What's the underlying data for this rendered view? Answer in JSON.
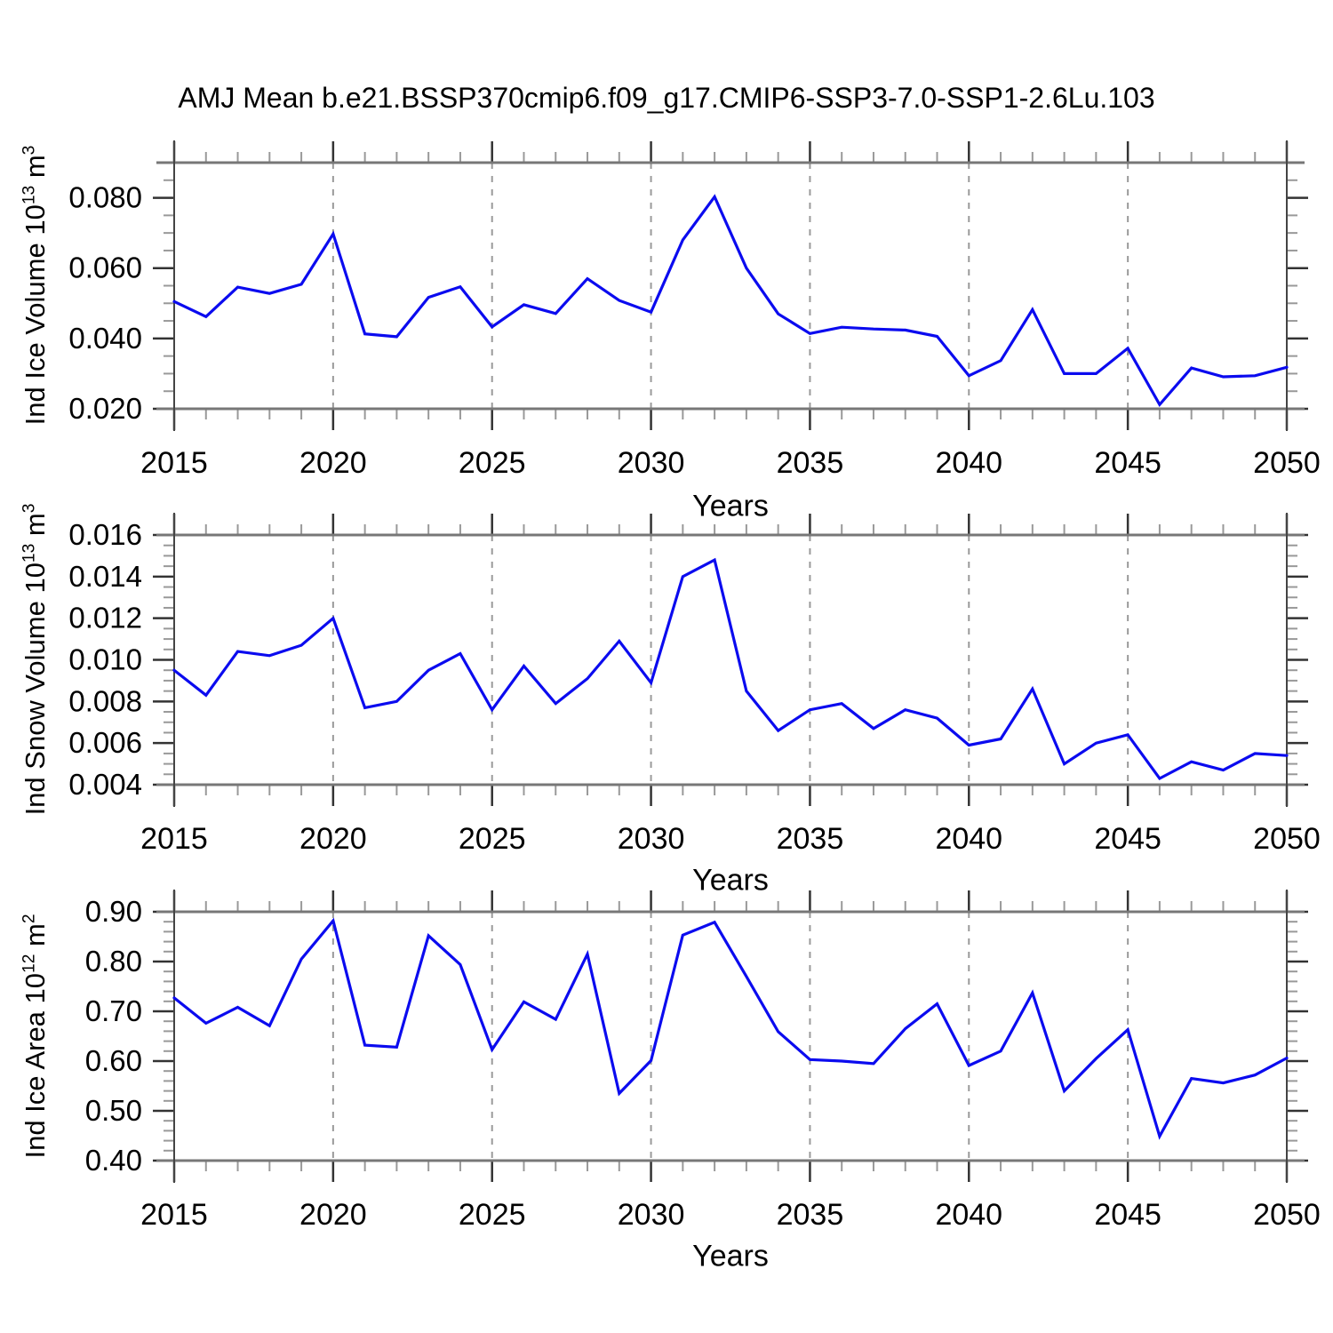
{
  "title": "AMJ Mean b.e21.BSSP370cmip6.f09_g17.CMIP6-SSP3-7.0-SSP1-2.6Lu.103",
  "accent_color": "#0b0bef",
  "chart_data": [
    {
      "type": "line",
      "xlabel": "Years",
      "ylabel": {
        "main": "Ind Ice Volume 10",
        "exp": "13",
        "unit": " m",
        "unit_exp": "3"
      },
      "x": [
        2015,
        2016,
        2017,
        2018,
        2019,
        2020,
        2021,
        2022,
        2023,
        2024,
        2025,
        2026,
        2027,
        2028,
        2029,
        2030,
        2031,
        2032,
        2033,
        2034,
        2035,
        2036,
        2037,
        2038,
        2039,
        2040,
        2041,
        2042,
        2043,
        2044,
        2045,
        2046,
        2047,
        2048,
        2049,
        2050
      ],
      "values": [
        0.0505,
        0.0462,
        0.0546,
        0.0528,
        0.0554,
        0.0697,
        0.0413,
        0.0405,
        0.0517,
        0.0547,
        0.0433,
        0.0496,
        0.0471,
        0.057,
        0.0508,
        0.0475,
        0.068,
        0.0803,
        0.06,
        0.047,
        0.0414,
        0.0432,
        0.0427,
        0.0424,
        0.0406,
        0.0294,
        0.0337,
        0.0482,
        0.03,
        0.03,
        0.0372,
        0.0212,
        0.0316,
        0.0291,
        0.0294,
        0.0318
      ],
      "xlim": [
        2015,
        2050
      ],
      "ylim": [
        0.02,
        0.09
      ],
      "yticks": [
        {
          "v": 0.02,
          "label": "0.020"
        },
        {
          "v": 0.04,
          "label": "0.040"
        },
        {
          "v": 0.06,
          "label": "0.060"
        },
        {
          "v": 0.08,
          "label": "0.080"
        }
      ],
      "xticks": [
        {
          "v": 2015,
          "label": "2015"
        },
        {
          "v": 2020,
          "label": "2020"
        },
        {
          "v": 2025,
          "label": "2025"
        },
        {
          "v": 2030,
          "label": "2030"
        },
        {
          "v": 2035,
          "label": "2035"
        },
        {
          "v": 2040,
          "label": "2040"
        },
        {
          "v": 2045,
          "label": "2045"
        },
        {
          "v": 2050,
          "label": "2050"
        }
      ],
      "gridlines_x": [
        2020,
        2025,
        2030,
        2035,
        2040,
        2045
      ],
      "grid": true,
      "legend": "none",
      "line_color": "#0b0bef"
    },
    {
      "type": "line",
      "xlabel": "Years",
      "ylabel": {
        "main": "Ind Snow Volume 10",
        "exp": "13",
        "unit": " m",
        "unit_exp": "3"
      },
      "x": [
        2015,
        2016,
        2017,
        2018,
        2019,
        2020,
        2021,
        2022,
        2023,
        2024,
        2025,
        2026,
        2027,
        2028,
        2029,
        2030,
        2031,
        2032,
        2033,
        2034,
        2035,
        2036,
        2037,
        2038,
        2039,
        2040,
        2041,
        2042,
        2043,
        2044,
        2045,
        2046,
        2047,
        2048,
        2049,
        2050
      ],
      "values": [
        0.0095,
        0.0083,
        0.0104,
        0.0102,
        0.0107,
        0.012,
        0.0077,
        0.008,
        0.0095,
        0.0103,
        0.0076,
        0.0097,
        0.0079,
        0.0091,
        0.0109,
        0.0089,
        0.014,
        0.0148,
        0.0085,
        0.0066,
        0.0076,
        0.0079,
        0.0067,
        0.0076,
        0.0072,
        0.0059,
        0.0062,
        0.0086,
        0.005,
        0.006,
        0.0064,
        0.0043,
        0.0051,
        0.0047,
        0.0055,
        0.0054
      ],
      "xlim": [
        2015,
        2050
      ],
      "ylim": [
        0.004,
        0.016
      ],
      "yticks": [
        {
          "v": 0.004,
          "label": "0.004"
        },
        {
          "v": 0.006,
          "label": "0.006"
        },
        {
          "v": 0.008,
          "label": "0.008"
        },
        {
          "v": 0.01,
          "label": "0.010"
        },
        {
          "v": 0.012,
          "label": "0.012"
        },
        {
          "v": 0.014,
          "label": "0.014"
        },
        {
          "v": 0.016,
          "label": "0.016"
        }
      ],
      "xticks": [
        {
          "v": 2015,
          "label": "2015"
        },
        {
          "v": 2020,
          "label": "2020"
        },
        {
          "v": 2025,
          "label": "2025"
        },
        {
          "v": 2030,
          "label": "2030"
        },
        {
          "v": 2035,
          "label": "2035"
        },
        {
          "v": 2040,
          "label": "2040"
        },
        {
          "v": 2045,
          "label": "2045"
        },
        {
          "v": 2050,
          "label": "2050"
        }
      ],
      "gridlines_x": [
        2020,
        2025,
        2030,
        2035,
        2040,
        2045
      ],
      "grid": true,
      "legend": "none",
      "line_color": "#0b0bef"
    },
    {
      "type": "line",
      "xlabel": "Years",
      "ylabel": {
        "main": "Ind Ice Area 10",
        "exp": "12",
        "unit": " m",
        "unit_exp": "2"
      },
      "x": [
        2015,
        2016,
        2017,
        2018,
        2019,
        2020,
        2021,
        2022,
        2023,
        2024,
        2025,
        2026,
        2027,
        2028,
        2029,
        2030,
        2031,
        2032,
        2033,
        2034,
        2035,
        2036,
        2037,
        2038,
        2039,
        2040,
        2041,
        2042,
        2043,
        2044,
        2045,
        2046,
        2047,
        2048,
        2049,
        2050
      ],
      "values": [
        0.727,
        0.676,
        0.708,
        0.671,
        0.805,
        0.882,
        0.632,
        0.628,
        0.852,
        0.794,
        0.623,
        0.719,
        0.684,
        0.815,
        0.535,
        0.601,
        0.853,
        0.879,
        0.77,
        0.659,
        0.603,
        0.6,
        0.595,
        0.665,
        0.715,
        0.591,
        0.62,
        0.737,
        0.54,
        0.605,
        0.663,
        0.449,
        0.565,
        0.556,
        0.572,
        0.606
      ],
      "xlim": [
        2015,
        2050
      ],
      "ylim": [
        0.4,
        0.9
      ],
      "yticks": [
        {
          "v": 0.4,
          "label": "0.40"
        },
        {
          "v": 0.5,
          "label": "0.50"
        },
        {
          "v": 0.6,
          "label": "0.60"
        },
        {
          "v": 0.7,
          "label": "0.70"
        },
        {
          "v": 0.8,
          "label": "0.80"
        },
        {
          "v": 0.9,
          "label": "0.90"
        }
      ],
      "xticks": [
        {
          "v": 2015,
          "label": "2015"
        },
        {
          "v": 2020,
          "label": "2020"
        },
        {
          "v": 2025,
          "label": "2025"
        },
        {
          "v": 2030,
          "label": "2030"
        },
        {
          "v": 2035,
          "label": "2035"
        },
        {
          "v": 2040,
          "label": "2040"
        },
        {
          "v": 2045,
          "label": "2045"
        },
        {
          "v": 2050,
          "label": "2050"
        }
      ],
      "gridlines_x": [
        2020,
        2025,
        2030,
        2035,
        2040,
        2045
      ],
      "grid": true,
      "legend": "none",
      "line_color": "#0b0bef"
    }
  ]
}
